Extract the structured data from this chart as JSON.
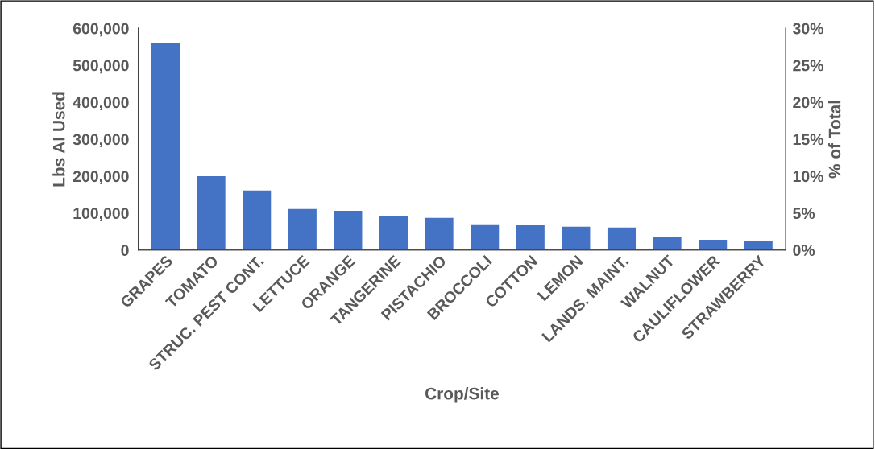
{
  "chart_data": {
    "type": "bar",
    "categories": [
      "GRAPES",
      "TOMATO",
      "STRUC. PEST CONT.",
      "LETTUCE",
      "ORANGE",
      "TANGERINE",
      "PISTACHIO",
      "BROCCOLI",
      "COTTON",
      "LEMON",
      "LANDS. MAINT.",
      "WALNUT",
      "CAULIFLOWER",
      "STRAWBERRY"
    ],
    "values": [
      559000,
      200000,
      161000,
      111000,
      106000,
      93000,
      87000,
      70000,
      67000,
      63000,
      61000,
      35000,
      28000,
      24000
    ],
    "color": "#4472c4",
    "xlabel": "Crop/Site",
    "ylabel": "Lbs AI Used",
    "y2label": "% of Total",
    "ylim": [
      0,
      600000
    ],
    "yticks": [
      0,
      {
        "value": 100000,
        "label": "100,000"
      },
      {
        "value": 200000,
        "label": "200,000"
      },
      {
        "value": 300000,
        "label": "300,000"
      },
      {
        "value": 400000,
        "label": "400,000"
      },
      {
        "value": 500000,
        "label": "500,000"
      },
      {
        "value": 600000,
        "label": "600,000"
      }
    ],
    "y2lim": [
      0,
      30
    ],
    "y2ticks": [
      {
        "value": 0,
        "label": "0%"
      },
      {
        "value": 5,
        "label": "5%"
      },
      {
        "value": 10,
        "label": "10%"
      },
      {
        "value": 15,
        "label": "15%"
      },
      {
        "value": 20,
        "label": "20%"
      },
      {
        "value": 25,
        "label": "25%"
      },
      {
        "value": 30,
        "label": "30%"
      }
    ],
    "grid": false,
    "legend": false
  }
}
